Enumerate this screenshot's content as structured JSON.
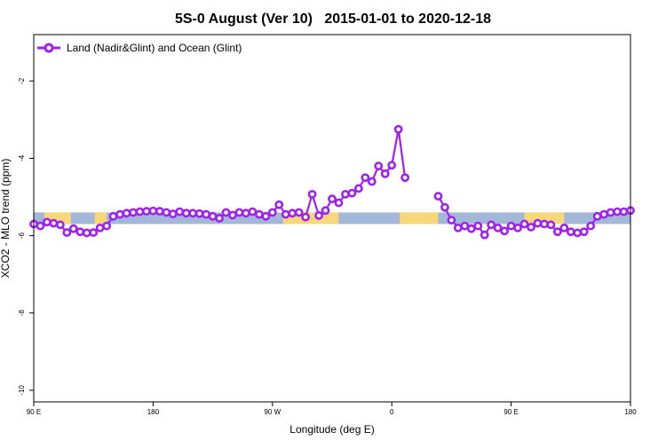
{
  "chart_data": {
    "type": "line",
    "title": "5S-0 August (Ver 10)   2015-01-01 to 2020-12-18",
    "xlabel": "Longitude (deg E)",
    "ylabel": "XCO2 - MLO trend (ppm)",
    "xlim": [
      90,
      540
    ],
    "ylim": [
      -10.3,
      -0.8
    ],
    "x_ticks": [
      {
        "value": 90,
        "label": "90 E"
      },
      {
        "value": 180,
        "label": "180"
      },
      {
        "value": 270,
        "label": "90 W"
      },
      {
        "value": 360,
        "label": "0"
      },
      {
        "value": 450,
        "label": "90 E"
      },
      {
        "value": 540,
        "label": "180"
      }
    ],
    "y_ticks": [
      {
        "value": -2,
        "label": "-2"
      },
      {
        "value": -4,
        "label": "-4"
      },
      {
        "value": -6,
        "label": "-6"
      },
      {
        "value": -8,
        "label": "-8"
      },
      {
        "value": -10,
        "label": "-10"
      }
    ],
    "legend": {
      "label": "Land (Nadir&Glint) and Ocean (Glint)",
      "position": "top-left"
    },
    "colors": {
      "series": "#a020f0",
      "ocean": "#a3b8d8",
      "land": "#f7d77a"
    },
    "map_strip": {
      "y_range": [
        -5.7,
        -5.4
      ],
      "land_longitudes": [
        [
          98,
          118
        ],
        [
          136,
          145
        ],
        [
          278,
          320
        ],
        [
          366,
          395
        ],
        [
          460,
          490
        ]
      ]
    },
    "series": [
      {
        "name": "Land (Nadir&Glint) and Ocean (Glint)",
        "segments": [
          {
            "x": [
              90,
              95,
              100,
              105,
              110,
              115,
              120,
              125,
              130,
              135,
              140,
              145,
              150,
              155,
              160,
              165,
              170,
              175,
              180,
              185,
              190,
              195,
              200,
              205,
              210,
              215,
              220,
              225,
              230,
              235,
              240,
              245,
              250,
              255,
              260,
              265,
              270,
              275,
              280,
              285,
              290,
              295,
              300,
              305,
              310,
              315,
              320,
              325,
              330,
              335,
              340,
              345,
              350,
              355,
              360,
              365
            ],
            "y": [
              -5.7,
              -5.75,
              -5.65,
              -5.68,
              -5.72,
              -5.92,
              -5.82,
              -5.9,
              -5.93,
              -5.92,
              -5.8,
              -5.75,
              -5.5,
              -5.45,
              -5.42,
              -5.4,
              -5.38,
              -5.37,
              -5.36,
              -5.37,
              -5.4,
              -5.44,
              -5.38,
              -5.42,
              -5.42,
              -5.43,
              -5.45,
              -5.5,
              -5.55,
              -5.4,
              -5.47,
              -5.4,
              -5.42,
              -5.38,
              -5.45,
              -5.5,
              -5.4,
              -5.2,
              -5.45,
              -5.42,
              -5.4,
              -5.52,
              -4.93,
              -5.48,
              -5.35,
              -5.05,
              -5.15,
              -4.93,
              -4.9,
              -4.78,
              -4.5,
              -4.6,
              -4.2,
              -4.4,
              -4.18,
              -3.25
            ]
          },
          {
            "x": [
              365,
              370
            ],
            "y": [
              -3.25,
              -4.5
            ]
          },
          {
            "x": [
              395,
              400,
              405,
              410,
              415,
              420,
              425,
              430,
              435,
              440,
              445,
              450,
              455,
              460,
              465,
              470,
              475,
              480,
              485,
              490,
              495,
              500,
              505,
              510,
              515,
              520,
              525,
              530,
              535,
              540
            ],
            "y": [
              -4.98,
              -5.27,
              -5.6,
              -5.8,
              -5.75,
              -5.82,
              -5.75,
              -5.98,
              -5.72,
              -5.8,
              -5.88,
              -5.75,
              -5.8,
              -5.7,
              -5.78,
              -5.68,
              -5.7,
              -5.72,
              -5.9,
              -5.8,
              -5.9,
              -5.93,
              -5.9,
              -5.75,
              -5.5,
              -5.45,
              -5.4,
              -5.38,
              -5.38,
              -5.35
            ]
          }
        ]
      }
    ]
  }
}
